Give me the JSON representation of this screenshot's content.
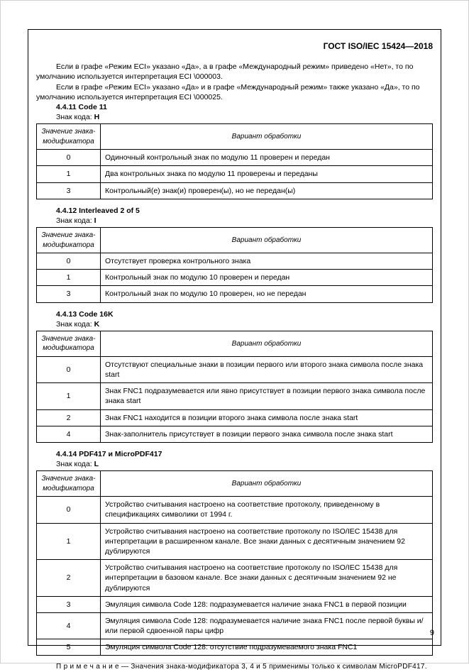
{
  "header": "ГОСТ ISO/IEC 15424—2018",
  "para1": "Если в графе «Режим ECI» указано «Да», а в графе «Международный режим» приведено «Нет», то по умолчанию используется интерпретация ECI \\000003.",
  "para2": "Если в графе «Режим ECI» указано «Да» и в графе «Международный режим» также указано «Да», то по умолчанию используется интерпретация ECI \\000025.",
  "codeLabel": "Знак кода:",
  "th_mod": "Значение знака-модификатора",
  "th_var": "Вариант обработки",
  "sec1": {
    "title": "4.4.11 Code 11",
    "code": "H",
    "rows": [
      {
        "v": "0",
        "d": "Одиночный контрольный знак по модулю 11 проверен и передан"
      },
      {
        "v": "1",
        "d": "Два контрольных знака по модулю 11 проверены и переданы"
      },
      {
        "v": "3",
        "d": "Контрольный(е) знак(и) проверен(ы), но не передан(ы)"
      }
    ]
  },
  "sec2": {
    "title": "4.4.12 Interleaved 2 of 5",
    "code": "I",
    "rows": [
      {
        "v": "0",
        "d": "Отсутствует проверка контрольного знака"
      },
      {
        "v": "1",
        "d": "Контрольный знак по модулю 10 проверен и передан"
      },
      {
        "v": "3",
        "d": "Контрольный знак по модулю 10 проверен, но не передан"
      }
    ]
  },
  "sec3": {
    "title": "4.4.13 Code 16K",
    "code": "K",
    "rows": [
      {
        "v": "0",
        "d": "Отсутствуют специальные знаки в позиции первого или второго знака символа после знака start"
      },
      {
        "v": "1",
        "d": "Знак FNC1 подразумевается или явно присутствует в позиции первого знака символа после знака start"
      },
      {
        "v": "2",
        "d": "Знак FNC1 находится в позиции второго знака символа после знака start"
      },
      {
        "v": "4",
        "d": "Знак-заполнитель присутствует в позиции первого знака символа после знака start"
      }
    ]
  },
  "sec4": {
    "title": "4.4.14 PDF417 и MicroPDF417",
    "code": "L",
    "rows": [
      {
        "v": "0",
        "d": "Устройство считывания настроено на соответствие протоколу, приведенному в спецификациях символики от 1994 г."
      },
      {
        "v": "1",
        "d": "Устройство считывания настроено на соответствие протоколу по ISO/IEC 15438 для интерпретации в расширенном канале. Все знаки данных с десятичным значением 92 дублируются"
      },
      {
        "v": "2",
        "d": "Устройство считывания настроено на соответствие протоколу по ISO/IEC 15438 для интерпретации в базовом канале. Все знаки данных с десятичным значением 92 не дублируются"
      },
      {
        "v": "3",
        "d": "Эмуляция символа Code 128: подразумевается наличие знака FNC1 в первой позиции"
      },
      {
        "v": "4",
        "d": "Эмуляция символа Code 128: подразумевается наличие знака FNC1 после первой буквы и/или первой сдвоенной пары цифр"
      },
      {
        "v": "5",
        "d": "Эмуляция символа Code 128: отсутствие подразумеваемого знака FNC1"
      }
    ]
  },
  "noteLabel": "П р и м е ч а н и е",
  "noteText": " — Значения знака-модификатора 3, 4 и 5 применимы только к символам MicroPDF417.",
  "pageNumber": "9"
}
